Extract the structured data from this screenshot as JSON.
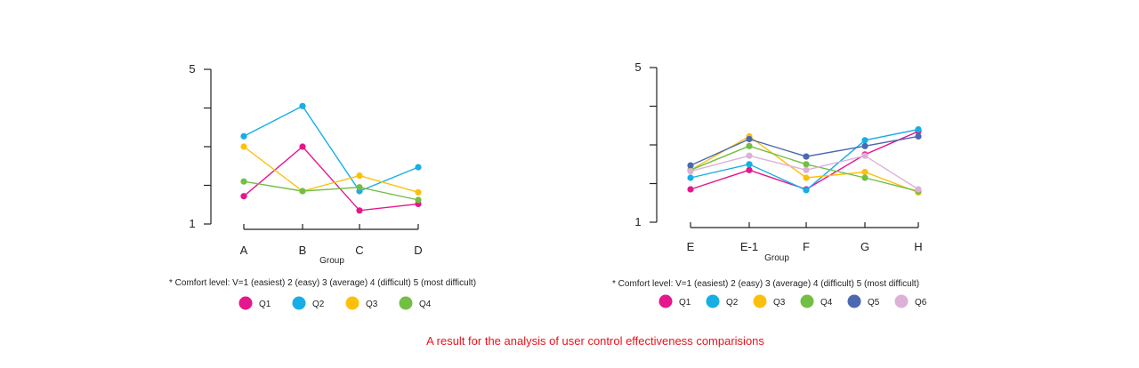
{
  "caption": "A result for the analysis of user control effectiveness comparisions",
  "chart_data": [
    {
      "type": "line",
      "xlabel": "Group",
      "ylabel": "",
      "ylim": [
        1,
        5
      ],
      "yticks": [
        1,
        2,
        3,
        4,
        5
      ],
      "ytick_labels": [
        "1",
        "",
        "",
        "",
        "5"
      ],
      "categories": [
        "A",
        "B",
        "C",
        "D"
      ],
      "note": "* Comfort level:  V=1 (easiest)   2 (easy)   3 (average)   4 (difficult)   5 (most difficult)",
      "legend_position": "bottom",
      "series": [
        {
          "name": "Q1",
          "color": "#e6168c",
          "values": [
            1.72,
            3.0,
            1.35,
            1.52
          ]
        },
        {
          "name": "Q2",
          "color": "#17aee5",
          "values": [
            3.27,
            4.05,
            1.85,
            2.47
          ]
        },
        {
          "name": "Q3",
          "color": "#fcc00c",
          "values": [
            3.0,
            1.85,
            2.25,
            1.82
          ]
        },
        {
          "name": "Q4",
          "color": "#72bf44",
          "values": [
            2.1,
            1.85,
            1.95,
            1.62
          ]
        }
      ]
    },
    {
      "type": "line",
      "xlabel": "Group",
      "ylabel": "",
      "ylim": [
        1,
        5
      ],
      "yticks": [
        1,
        2,
        3,
        4,
        5
      ],
      "ytick_labels": [
        "1",
        "",
        "",
        "",
        "5"
      ],
      "categories": [
        "E",
        "E-1",
        "F",
        "G",
        "H"
      ],
      "note": "* Comfort level:  V=1 (easiest)   2 (easy)   3 (average)   4 (difficult)   5 (most difficult)",
      "legend_position": "bottom",
      "series": [
        {
          "name": "Q1",
          "color": "#e6168c",
          "values": [
            1.85,
            2.35,
            1.85,
            2.75,
            3.35
          ]
        },
        {
          "name": "Q2",
          "color": "#17aee5",
          "values": [
            2.15,
            2.5,
            1.83,
            3.12,
            3.4
          ]
        },
        {
          "name": "Q3",
          "color": "#fcc00c",
          "values": [
            2.35,
            3.22,
            2.15,
            2.3,
            1.77
          ]
        },
        {
          "name": "Q4",
          "color": "#72bf44",
          "values": [
            2.35,
            2.97,
            2.5,
            2.15,
            1.8
          ]
        },
        {
          "name": "Q5",
          "color": "#4c68b1",
          "values": [
            2.47,
            3.15,
            2.7,
            2.97,
            3.22
          ]
        },
        {
          "name": "Q6",
          "color": "#dcb1d8",
          "values": [
            2.32,
            2.72,
            2.35,
            2.72,
            1.85
          ]
        }
      ]
    }
  ]
}
